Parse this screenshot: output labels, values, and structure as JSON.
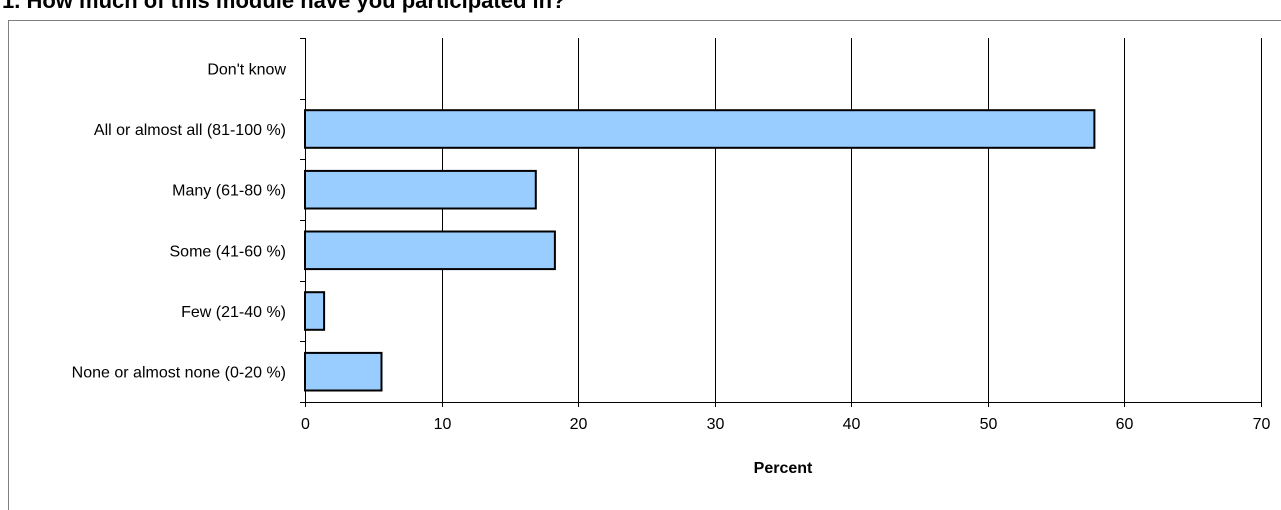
{
  "chart_data": {
    "type": "bar",
    "orientation": "horizontal",
    "title": "1. How much of this module have you participated in?",
    "xlabel": "Percent",
    "ylabel": "",
    "categories": [
      "Don't know",
      "All or almost all (81-100 %)",
      "Many (61-80 %)",
      "Some (41-60 %)",
      "Few (21-40 %)",
      "None or almost none (0-20 %)"
    ],
    "values": [
      0,
      57.8,
      16.9,
      18.3,
      1.4,
      5.6
    ],
    "xlim": [
      0,
      70
    ],
    "xticks": [
      0,
      10,
      20,
      30,
      40,
      50,
      60,
      70
    ],
    "grid": "vertical",
    "legend": "none",
    "colors": {
      "bar_fill": "#99ccff",
      "bar_stroke": "#000000",
      "grid": "#000000",
      "frame": "#808080"
    }
  }
}
